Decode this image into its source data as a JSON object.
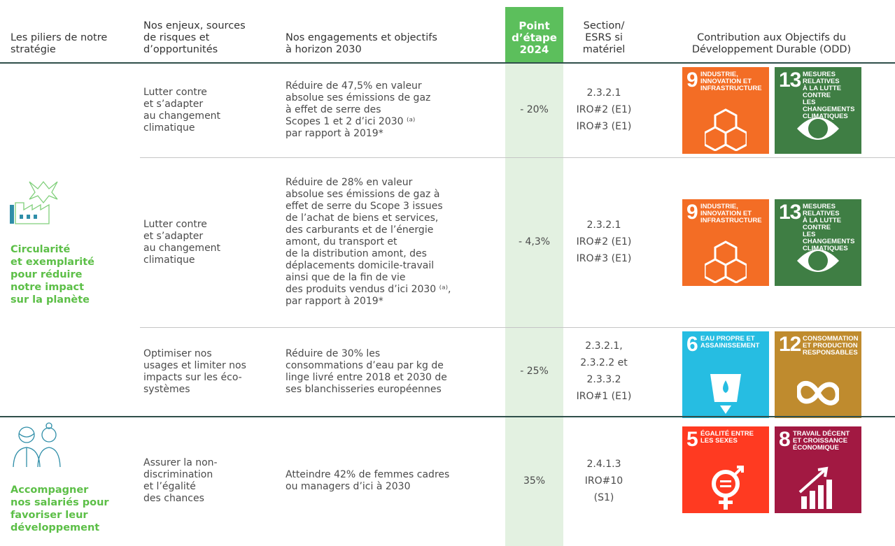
{
  "header": [
    [
      "Les piliers de notre",
      "stratégie"
    ],
    [
      "Nos enjeux, sources",
      "de risques et",
      "d’opportunités"
    ],
    [
      "Nos engagements et objectifs",
      "à horizon 2030"
    ],
    [
      "Point",
      "d’étape",
      "2024"
    ],
    [
      "Section/",
      "ESRS si",
      "matériel"
    ],
    [
      "Contribution aux Objectifs du",
      "Développement Durable (ODD)"
    ]
  ],
  "pillars": [
    {
      "label": [
        "Circularité",
        "et exemplarité",
        "pour réduire",
        "notre impact",
        "sur la planète"
      ],
      "rows": [
        {
          "issue": [
            "Lutter contre",
            "et s’adapter",
            "au changement",
            "climatique"
          ],
          "commitment": [
            "Réduire de 47,5% en valeur",
            "absolue ses émissions de gaz",
            "à effet de serre des",
            "Scopes 1 et 2 d’ici 2030 ⁽ᵃ⁾",
            "par rapport à 2019*"
          ],
          "milestone": "- 20%",
          "section": [
            "2.3.2.1",
            "IRO#2 (E1)",
            "IRO#3 (E1)"
          ],
          "sdgs": [
            {
              "number": "9",
              "label": [
                "Industrie,",
                "innovation et",
                "infrastructure"
              ]
            },
            {
              "number": "13",
              "label": [
                "Mesures relatives",
                "à la lutte contre",
                "les changements",
                "climatiques"
              ]
            }
          ]
        },
        {
          "issue": [
            "Lutter contre",
            "et s’adapter",
            "au changement",
            "climatique"
          ],
          "commitment": [
            "Réduire de 28% en valeur",
            "absolue ses émissions de gaz à",
            "effet de serre du Scope 3 issues",
            "de l’achat de biens et services,",
            "des carburants et de l’énergie",
            "amont, du transport et",
            "de la distribution amont, des",
            "déplacements domicile-travail",
            "ainsi que de la fin de vie",
            "des produits vendus d’ici 2030 ⁽ᵃ⁾,",
            "par rapport à 2019*"
          ],
          "milestone": "- 4,3%",
          "section": [
            "2.3.2.1",
            "IRO#2 (E1)",
            "IRO#3 (E1)"
          ],
          "sdgs": [
            {
              "number": "9",
              "label": [
                "Industrie,",
                "innovation et",
                "infrastructure"
              ]
            },
            {
              "number": "13",
              "label": [
                "Mesures relatives",
                "à la lutte contre",
                "les changements",
                "climatiques"
              ]
            }
          ]
        },
        {
          "issue": [
            "Optimiser nos",
            "usages et limiter nos",
            "impacts sur les éco-",
            "systèmes"
          ],
          "commitment": [
            "Réduire de 30% les",
            "consommations d’eau par kg de",
            "linge livré entre 2018 et 2030 de",
            "ses blanchisseries européennes"
          ],
          "milestone": "- 25%",
          "section": [
            "2.3.2.1,",
            "2.3.2.2 et",
            "2.3.3.2",
            "IRO#1 (E1)"
          ],
          "sdgs": [
            {
              "number": "6",
              "label": [
                "Eau propre et",
                "assainissement"
              ]
            },
            {
              "number": "12",
              "label": [
                "Consommation",
                "et production",
                "responsables"
              ]
            }
          ]
        }
      ]
    },
    {
      "label": [
        "Accompagner",
        "nos salariés pour",
        "favoriser leur",
        "développement"
      ],
      "rows": [
        {
          "issue": [
            "Assurer la non-",
            "discrimination",
            "et l’égalité",
            "des chances"
          ],
          "commitment": [
            "Atteindre 42% de femmes cadres",
            "ou managers d’ici à 2030"
          ],
          "milestone": "35%",
          "section": [
            "2.4.1.3",
            "IRO#10",
            "(S1)"
          ],
          "sdgs": [
            {
              "number": "5",
              "label": [
                "Égalité entre",
                "les sexes"
              ]
            },
            {
              "number": "8",
              "label": [
                "Travail décent",
                "et croissance",
                "économique"
              ]
            }
          ]
        }
      ]
    }
  ]
}
